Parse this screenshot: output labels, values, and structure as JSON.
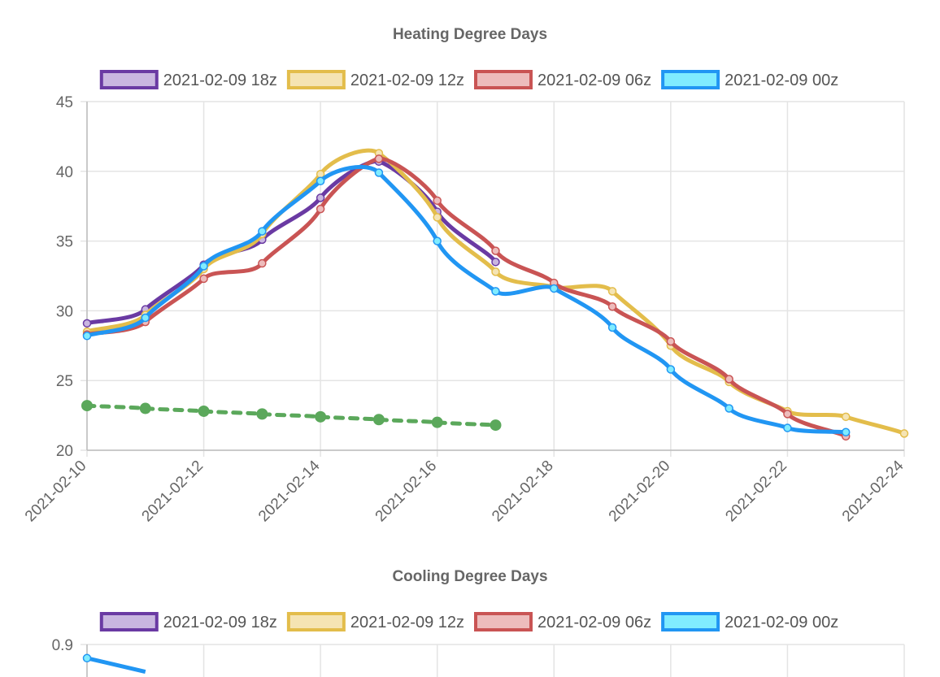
{
  "colors": {
    "grid": "#e4e4e4",
    "axis": "#bdbdbd",
    "observed": "#5ba85b"
  },
  "chart_data": [
    {
      "type": "line",
      "title": "Heating Degree Days",
      "x_type": "date",
      "ylim": [
        20,
        45
      ],
      "yticks": [
        "45",
        "40",
        "35",
        "30",
        "25",
        "20"
      ],
      "xlim": [
        "2021-02-10",
        "2021-02-24"
      ],
      "xticks": [
        "2021-02-10",
        "2021-02-12",
        "2021-02-14",
        "2021-02-16",
        "2021-02-18",
        "2021-02-20",
        "2021-02-22",
        "2021-02-24"
      ],
      "grid": true,
      "legend_position": "top",
      "series": [
        {
          "name": "2021-02-09 18z",
          "color": "#6a3aa3",
          "fill": "#c9b6e0",
          "x": [
            "2021-02-10",
            "2021-02-11",
            "2021-02-12",
            "2021-02-13",
            "2021-02-14",
            "2021-02-15",
            "2021-02-16",
            "2021-02-17"
          ],
          "y": [
            29.1,
            30.1,
            33.3,
            35.1,
            38.1,
            40.7,
            37.1,
            33.5
          ]
        },
        {
          "name": "2021-02-09 12z",
          "color": "#e3bd4b",
          "fill": "#f5e4b3",
          "x": [
            "2021-02-10",
            "2021-02-11",
            "2021-02-12",
            "2021-02-13",
            "2021-02-14",
            "2021-02-15",
            "2021-02-16",
            "2021-02-17",
            "2021-02-18",
            "2021-02-19",
            "2021-02-20",
            "2021-02-21",
            "2021-02-22",
            "2021-02-23",
            "2021-02-24"
          ],
          "y": [
            28.5,
            29.7,
            33.0,
            35.5,
            39.8,
            41.3,
            36.7,
            32.8,
            31.7,
            31.4,
            27.5,
            24.9,
            22.8,
            22.4,
            21.2
          ]
        },
        {
          "name": "2021-02-09 06z",
          "color": "#c95454",
          "fill": "#edbcbc",
          "x": [
            "2021-02-10",
            "2021-02-11",
            "2021-02-12",
            "2021-02-13",
            "2021-02-14",
            "2021-02-15",
            "2021-02-16",
            "2021-02-17",
            "2021-02-18",
            "2021-02-19",
            "2021-02-20",
            "2021-02-21",
            "2021-02-22",
            "2021-02-23"
          ],
          "y": [
            28.3,
            29.2,
            32.3,
            33.4,
            37.3,
            40.9,
            37.9,
            34.3,
            32.0,
            30.3,
            27.8,
            25.1,
            22.6,
            21.0
          ]
        },
        {
          "name": "2021-02-09 00z",
          "color": "#2196f3",
          "fill": "#80ecff",
          "x": [
            "2021-02-10",
            "2021-02-11",
            "2021-02-12",
            "2021-02-13",
            "2021-02-14",
            "2021-02-15",
            "2021-02-16",
            "2021-02-17",
            "2021-02-18",
            "2021-02-19",
            "2021-02-20",
            "2021-02-21",
            "2021-02-22",
            "2021-02-23"
          ],
          "y": [
            28.2,
            29.5,
            33.2,
            35.7,
            39.3,
            39.9,
            35.0,
            31.4,
            31.6,
            28.8,
            25.8,
            23.0,
            21.6,
            21.3
          ]
        },
        {
          "color": "#5ba85b",
          "dashed": true,
          "x": [
            "2021-02-10",
            "2021-02-11",
            "2021-02-12",
            "2021-02-13",
            "2021-02-14",
            "2021-02-15",
            "2021-02-16",
            "2021-02-17"
          ],
          "y": [
            23.2,
            23.0,
            22.8,
            22.6,
            22.4,
            22.2,
            22.0,
            21.8
          ]
        }
      ]
    },
    {
      "type": "line",
      "title": "Cooling Degree Days",
      "x_type": "date",
      "yticks": [
        "0.9"
      ],
      "ylim": [
        0.8,
        0.9
      ],
      "xlim": [
        "2021-02-10",
        "2021-02-24"
      ],
      "grid": true,
      "legend_position": "top",
      "series": [
        {
          "name": "2021-02-09 18z",
          "color": "#6a3aa3",
          "fill": "#c9b6e0"
        },
        {
          "name": "2021-02-09 12z",
          "color": "#e3bd4b",
          "fill": "#f5e4b3"
        },
        {
          "name": "2021-02-09 06z",
          "color": "#c95454",
          "fill": "#edbcbc"
        },
        {
          "name": "2021-02-09 00z",
          "color": "#2196f3",
          "fill": "#80ecff",
          "x": [
            "2021-02-10",
            "2021-02-11"
          ],
          "y": [
            0.84,
            0.78
          ]
        }
      ]
    }
  ]
}
